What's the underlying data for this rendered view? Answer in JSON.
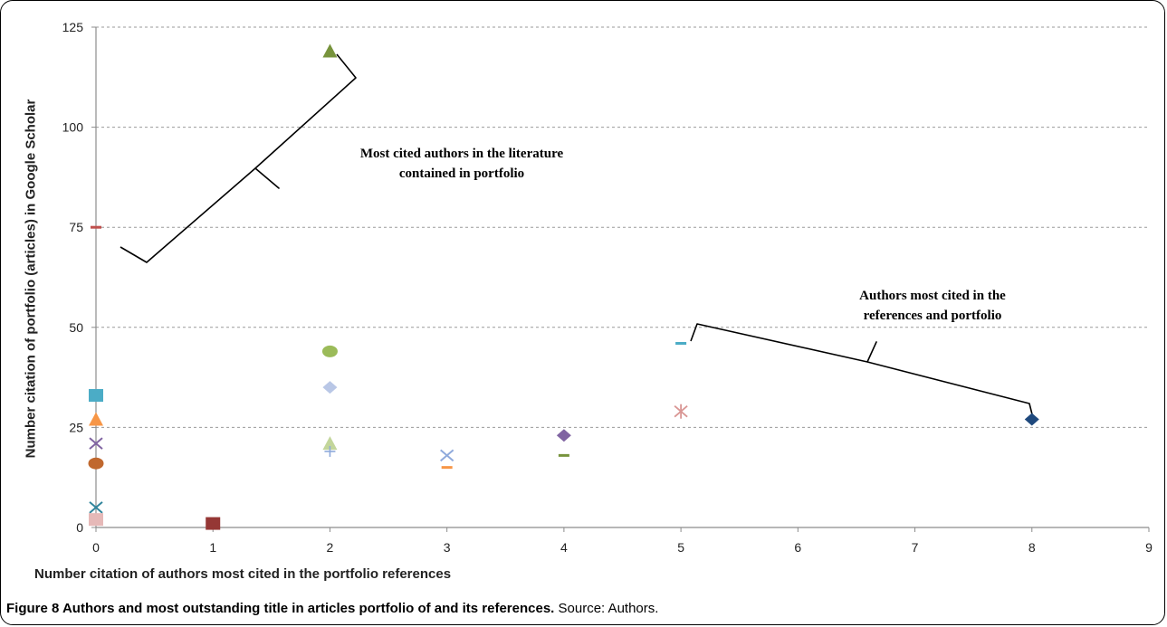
{
  "chart_data": {
    "type": "scatter",
    "xlabel": "Number citation of authors most cited in the portfolio references",
    "ylabel": "Number citation of portfolio (articles) in Google Scholar",
    "xlim": [
      0,
      9
    ],
    "ylim": [
      0,
      125
    ],
    "xticks": [
      "0",
      "1",
      "2",
      "3",
      "4",
      "5",
      "6",
      "7",
      "8",
      "9"
    ],
    "yticks": [
      "0",
      "25",
      "50",
      "75",
      "100",
      "125"
    ],
    "grid": "horizontal dashed",
    "points": [
      {
        "x": 0,
        "y": 75,
        "marker": "dash",
        "color": "#c0504d"
      },
      {
        "x": 0,
        "y": 33,
        "marker": "square",
        "color": "#4bacc6"
      },
      {
        "x": 0,
        "y": 27,
        "marker": "triangle",
        "color": "#f79646"
      },
      {
        "x": 0,
        "y": 21,
        "marker": "x",
        "color": "#8064a2"
      },
      {
        "x": 0,
        "y": 16,
        "marker": "circle",
        "color": "#c0682e"
      },
      {
        "x": 0,
        "y": 5,
        "marker": "x",
        "color": "#31859c"
      },
      {
        "x": 0,
        "y": 2,
        "marker": "square",
        "color": "#e6b9b8"
      },
      {
        "x": 1,
        "y": 1,
        "marker": "square",
        "color": "#953735"
      },
      {
        "x": 2,
        "y": 119,
        "marker": "triangle",
        "color": "#77933c"
      },
      {
        "x": 2,
        "y": 44,
        "marker": "circle",
        "color": "#9bbb59"
      },
      {
        "x": 2,
        "y": 35,
        "marker": "diamond",
        "color": "#b9c7e6"
      },
      {
        "x": 2,
        "y": 21,
        "marker": "triangle",
        "color": "#c3d69b"
      },
      {
        "x": 2,
        "y": 19,
        "marker": "plus",
        "color": "#8ea9db"
      },
      {
        "x": 3,
        "y": 18,
        "marker": "x",
        "color": "#8faadc"
      },
      {
        "x": 3,
        "y": 15,
        "marker": "dash",
        "color": "#f79646"
      },
      {
        "x": 4,
        "y": 23,
        "marker": "diamond",
        "color": "#8064a2"
      },
      {
        "x": 4,
        "y": 18,
        "marker": "dash",
        "color": "#77933c"
      },
      {
        "x": 5,
        "y": 46,
        "marker": "dash",
        "color": "#4bacc6"
      },
      {
        "x": 5,
        "y": 29,
        "marker": "asterisk",
        "color": "#d99694"
      },
      {
        "x": 8,
        "y": 27,
        "marker": "diamond",
        "color": "#1f497d"
      }
    ],
    "annotations": [
      {
        "text_lines": [
          "Most cited authors in the literature",
          "contained in portfolio"
        ]
      },
      {
        "text_lines": [
          "Authors most cited in the",
          "references and portfolio"
        ]
      }
    ]
  },
  "caption": {
    "bold": "Figure 8 Authors and most outstanding title in articles portfolio of and its references.",
    "normal": " Source: Authors."
  }
}
